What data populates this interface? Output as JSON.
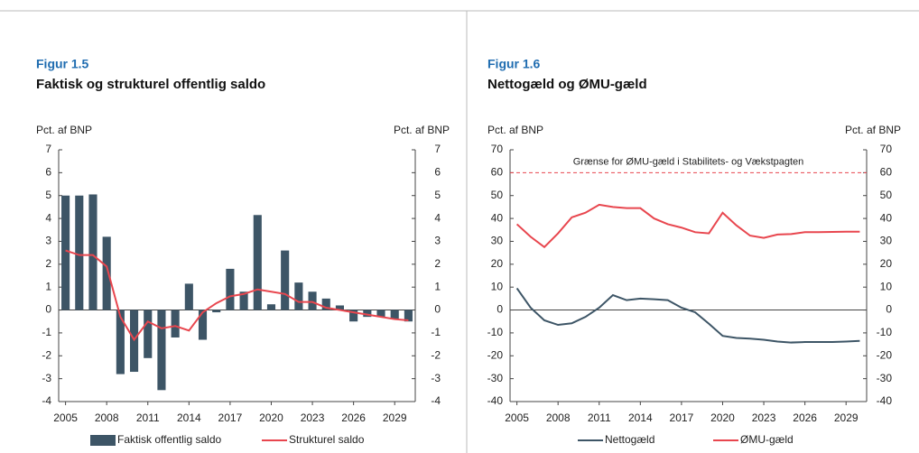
{
  "chart_data": [
    {
      "type": "bar",
      "figure_label": "Figur 1.5",
      "title": "Faktisk og strukturel offentlig saldo",
      "ylabel": "Pct. af BNP",
      "y2label": "Pct. af BNP",
      "x": [
        2005,
        2006,
        2007,
        2008,
        2009,
        2010,
        2011,
        2012,
        2013,
        2014,
        2015,
        2016,
        2017,
        2018,
        2019,
        2020,
        2021,
        2022,
        2023,
        2024,
        2025,
        2026,
        2027,
        2028,
        2029,
        2030
      ],
      "xlim": [
        2004.5,
        2030.5
      ],
      "xticks": [
        2005,
        2008,
        2011,
        2014,
        2017,
        2020,
        2023,
        2026,
        2029
      ],
      "ylim": [
        -4,
        7
      ],
      "yticks": [
        -4,
        -3,
        -2,
        -1,
        0,
        1,
        2,
        3,
        4,
        5,
        6,
        7
      ],
      "y2lim": [
        -4,
        7
      ],
      "y2ticks": [
        -4,
        -3,
        -2,
        -1,
        0,
        1,
        2,
        3,
        4,
        5,
        6,
        7
      ],
      "series": [
        {
          "name": "Faktisk offentlig saldo",
          "type": "bar",
          "color": "#3d5566",
          "values": [
            5.0,
            5.0,
            5.05,
            3.2,
            -2.8,
            -2.7,
            -2.1,
            -3.5,
            -1.2,
            1.15,
            -1.3,
            -0.1,
            1.8,
            0.8,
            4.15,
            0.25,
            2.6,
            1.2,
            0.8,
            0.5,
            0.2,
            -0.5,
            -0.3,
            -0.3,
            -0.4,
            -0.5
          ]
        },
        {
          "name": "Strukturel saldo",
          "type": "line",
          "color": "#e8464e",
          "values": [
            2.6,
            2.4,
            2.4,
            1.9,
            -0.3,
            -1.3,
            -0.5,
            -0.8,
            -0.7,
            -0.9,
            -0.1,
            0.3,
            0.6,
            0.7,
            0.9,
            0.8,
            0.7,
            0.35,
            0.35,
            0.1,
            0,
            -0.1,
            -0.2,
            -0.3,
            -0.4,
            -0.45
          ]
        }
      ]
    },
    {
      "type": "line",
      "figure_label": "Figur 1.6",
      "title": "Nettogæld og ØMU-gæld",
      "ylabel": "Pct. af BNP",
      "y2label": "Pct. af BNP",
      "x": [
        2005,
        2006,
        2007,
        2008,
        2009,
        2010,
        2011,
        2012,
        2013,
        2014,
        2015,
        2016,
        2017,
        2018,
        2019,
        2020,
        2021,
        2022,
        2023,
        2024,
        2025,
        2026,
        2027,
        2028,
        2029,
        2030
      ],
      "xlim": [
        2004.5,
        2030.5
      ],
      "xticks": [
        2005,
        2008,
        2011,
        2014,
        2017,
        2020,
        2023,
        2026,
        2029
      ],
      "ylim": [
        -40,
        70
      ],
      "yticks": [
        -40,
        -30,
        -20,
        -10,
        0,
        10,
        20,
        30,
        40,
        50,
        60,
        70
      ],
      "y2lim": [
        -40,
        70
      ],
      "y2ticks": [
        -40,
        -30,
        -20,
        -10,
        0,
        10,
        20,
        30,
        40,
        50,
        60,
        70
      ],
      "reference_line": {
        "value": 60,
        "label": "Grænse for ØMU-gæld i Stabilitets- og Vækstpagten",
        "color": "#e8464e"
      },
      "series": [
        {
          "name": "Nettogæld",
          "type": "line",
          "color": "#3d5566",
          "values": [
            9.5,
            1,
            -4.5,
            -6.5,
            -5.8,
            -3,
            1,
            6.5,
            4.3,
            5,
            4.7,
            4.3,
            1,
            -1,
            -6,
            -11.3,
            -12.2,
            -12.5,
            -13,
            -13.8,
            -14.2,
            -14,
            -14,
            -14,
            -13.8,
            -13.5
          ]
        },
        {
          "name": "ØMU-gæld",
          "type": "line",
          "color": "#e8464e",
          "values": [
            37.5,
            32,
            27.5,
            33.5,
            40.5,
            42.5,
            46,
            45,
            44.5,
            44.5,
            40,
            37.5,
            36,
            34,
            33.5,
            42.5,
            37,
            32.5,
            31.5,
            33,
            33.2,
            34,
            34,
            34.1,
            34.2,
            34.2
          ]
        }
      ]
    }
  ]
}
